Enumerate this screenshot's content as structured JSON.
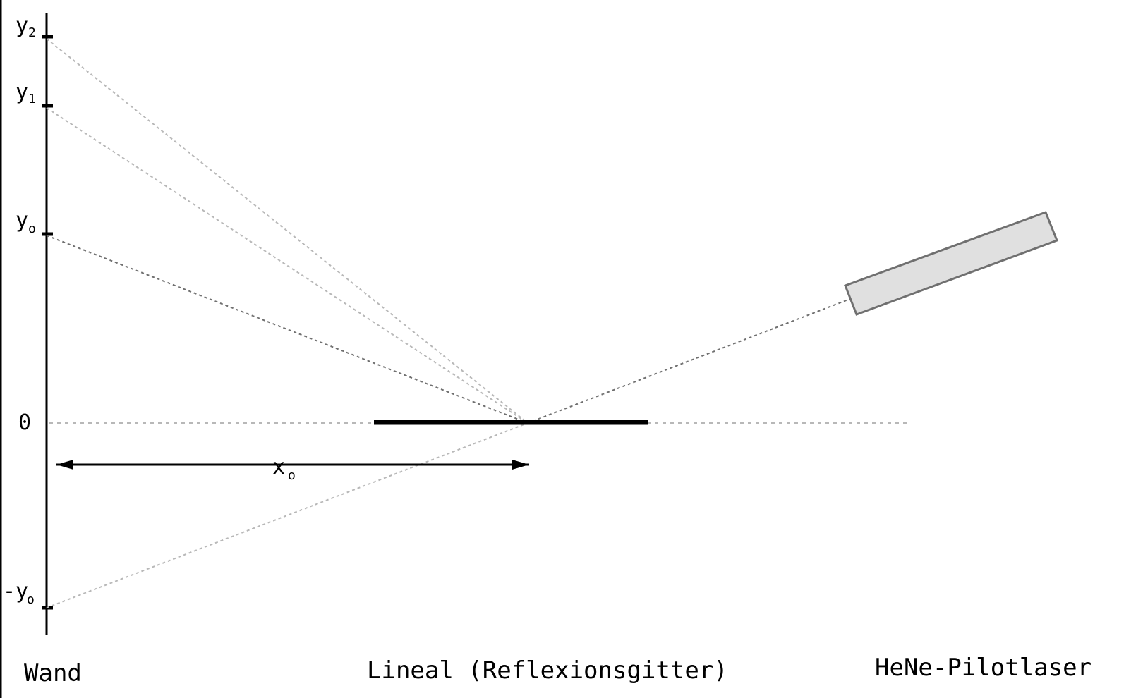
{
  "labels": {
    "wall": "Wand",
    "ruler": "Lineal (Reflexionsgitter)",
    "laser": "HeNe-Pilotlaser",
    "zero": "0",
    "y2": {
      "main": "y",
      "sub": "2"
    },
    "y1": {
      "main": "y",
      "sub": "1"
    },
    "y0": {
      "main": "y",
      "sub": "o"
    },
    "neg_y0": {
      "main": "-y",
      "sub": "o"
    },
    "x0": {
      "main": "x",
      "sub": "o"
    }
  },
  "colors": {
    "ink": "#000000",
    "beam_light": "#b8b8b8",
    "beam_dark": "#707070",
    "laser_fill": "#e0e0e0",
    "laser_stroke": "#707070"
  }
}
